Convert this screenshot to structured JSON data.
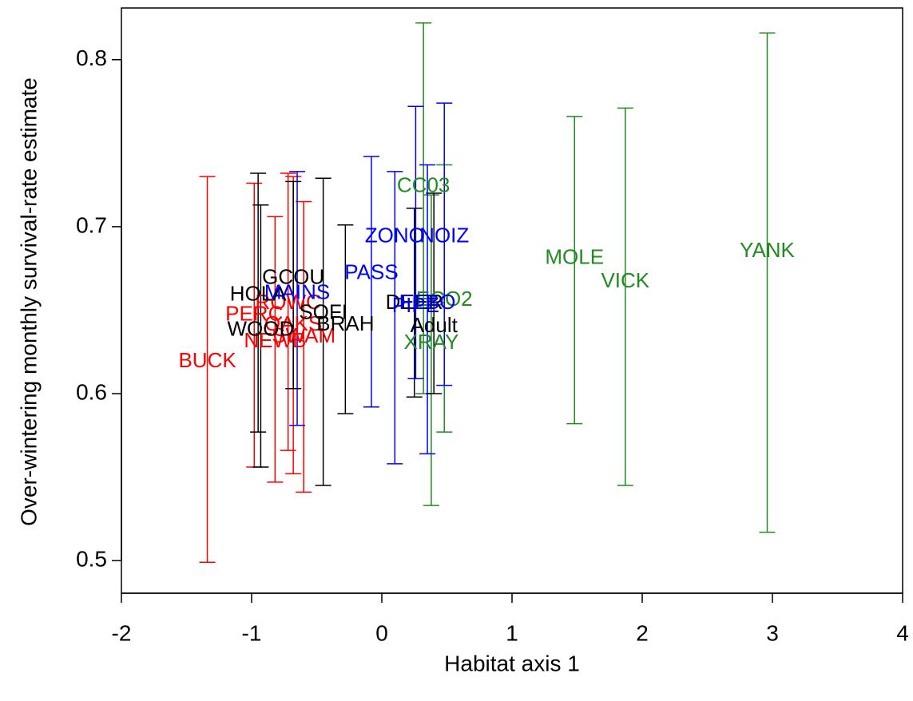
{
  "chart_data": {
    "type": "errorbar-labels",
    "x_label": "Habitat axis 1",
    "y_label": "Over-wintering monthly survival-rate estimate",
    "xlim": [
      -2,
      4
    ],
    "xticks": [
      -2,
      -1,
      0,
      1,
      2,
      3,
      4
    ],
    "ylim": [
      0.48,
      0.83
    ],
    "yticks": [
      0.5,
      0.6,
      0.7,
      0.8
    ],
    "points": [
      {
        "label": "YANK",
        "color": "#228b22",
        "x": 2.96,
        "y": 0.685,
        "lower": 0.517,
        "upper": 0.816
      },
      {
        "label": "VICK",
        "color": "#228b22",
        "x": 1.87,
        "y": 0.667,
        "lower": 0.545,
        "upper": 0.771
      },
      {
        "label": "MOLE",
        "color": "#228b22",
        "x": 1.48,
        "y": 0.681,
        "lower": 0.582,
        "upper": 0.766
      },
      {
        "label": "CC03",
        "color": "#228b22",
        "x": 0.32,
        "y": 0.724,
        "lower": 0.6,
        "upper": 0.822
      },
      {
        "label": "XRAY",
        "color": "#228b22",
        "x": 0.38,
        "y": 0.63,
        "lower": 0.533,
        "upper": 0.719
      },
      {
        "label": "ECO2",
        "color": "#228b22",
        "x": 0.48,
        "y": 0.656,
        "lower": 0.577,
        "upper": 0.737
      },
      {
        "label": "BUCK",
        "color": "#ff0000",
        "x": -1.34,
        "y": 0.619,
        "lower": 0.499,
        "upper": 0.73
      },
      {
        "label": "PERC",
        "color": "#ff0000",
        "x": -0.98,
        "y": 0.647,
        "lower": 0.556,
        "upper": 0.726
      },
      {
        "label": "ROWC",
        "color": "#ff0000",
        "x": -0.72,
        "y": 0.654,
        "lower": 0.566,
        "upper": 0.732
      },
      {
        "label": "NEWB",
        "color": "#ff0000",
        "x": -0.82,
        "y": 0.631,
        "lower": 0.547,
        "upper": 0.706
      },
      {
        "label": "SWAM",
        "color": "#ff0000",
        "x": -0.6,
        "y": 0.634,
        "lower": 0.541,
        "upper": 0.715
      },
      {
        "label": "OAKS",
        "color": "#ff0000",
        "x": -0.68,
        "y": 0.641,
        "lower": 0.552,
        "upper": 0.73
      },
      {
        "label": "HOLA",
        "color": "#000000",
        "x": -0.95,
        "y": 0.659,
        "lower": 0.577,
        "upper": 0.732
      },
      {
        "label": "GCOU",
        "color": "#000000",
        "x": -0.68,
        "y": 0.669,
        "lower": 0.603,
        "upper": 0.727
      },
      {
        "label": "WOOD",
        "color": "#000000",
        "x": -0.93,
        "y": 0.638,
        "lower": 0.556,
        "upper": 0.713
      },
      {
        "label": "SOFI",
        "color": "#000000",
        "x": -0.45,
        "y": 0.648,
        "lower": 0.545,
        "upper": 0.729
      },
      {
        "label": "BRAH",
        "color": "#000000",
        "x": -0.28,
        "y": 0.641,
        "lower": 0.588,
        "upper": 0.701
      },
      {
        "label": "DEER",
        "color": "#000000",
        "x": 0.25,
        "y": 0.654,
        "lower": 0.598,
        "upper": 0.711
      },
      {
        "label": "Adult",
        "color": "#000000",
        "x": 0.4,
        "y": 0.64,
        "lower": 0.6,
        "upper": 0.72
      },
      {
        "label": "PASS",
        "color": "#0000ff",
        "x": -0.08,
        "y": 0.672,
        "lower": 0.592,
        "upper": 0.742
      },
      {
        "label": "ZONO",
        "color": "#0000ff",
        "x": 0.1,
        "y": 0.694,
        "lower": 0.558,
        "upper": 0.733
      },
      {
        "label": "NOIZ",
        "color": "#0000ff",
        "x": 0.48,
        "y": 0.694,
        "lower": 0.605,
        "upper": 0.774
      },
      {
        "label": "PIPE",
        "color": "#0000ff",
        "x": 0.26,
        "y": 0.652,
        "lower": 0.609,
        "upper": 0.772
      },
      {
        "label": "MAINS",
        "color": "#0000ff",
        "x": -0.65,
        "y": 0.66,
        "lower": 0.581,
        "upper": 0.733
      },
      {
        "label": "FEBO",
        "color": "#0000ff",
        "x": 0.35,
        "y": 0.654,
        "lower": 0.564,
        "upper": 0.737
      }
    ]
  }
}
